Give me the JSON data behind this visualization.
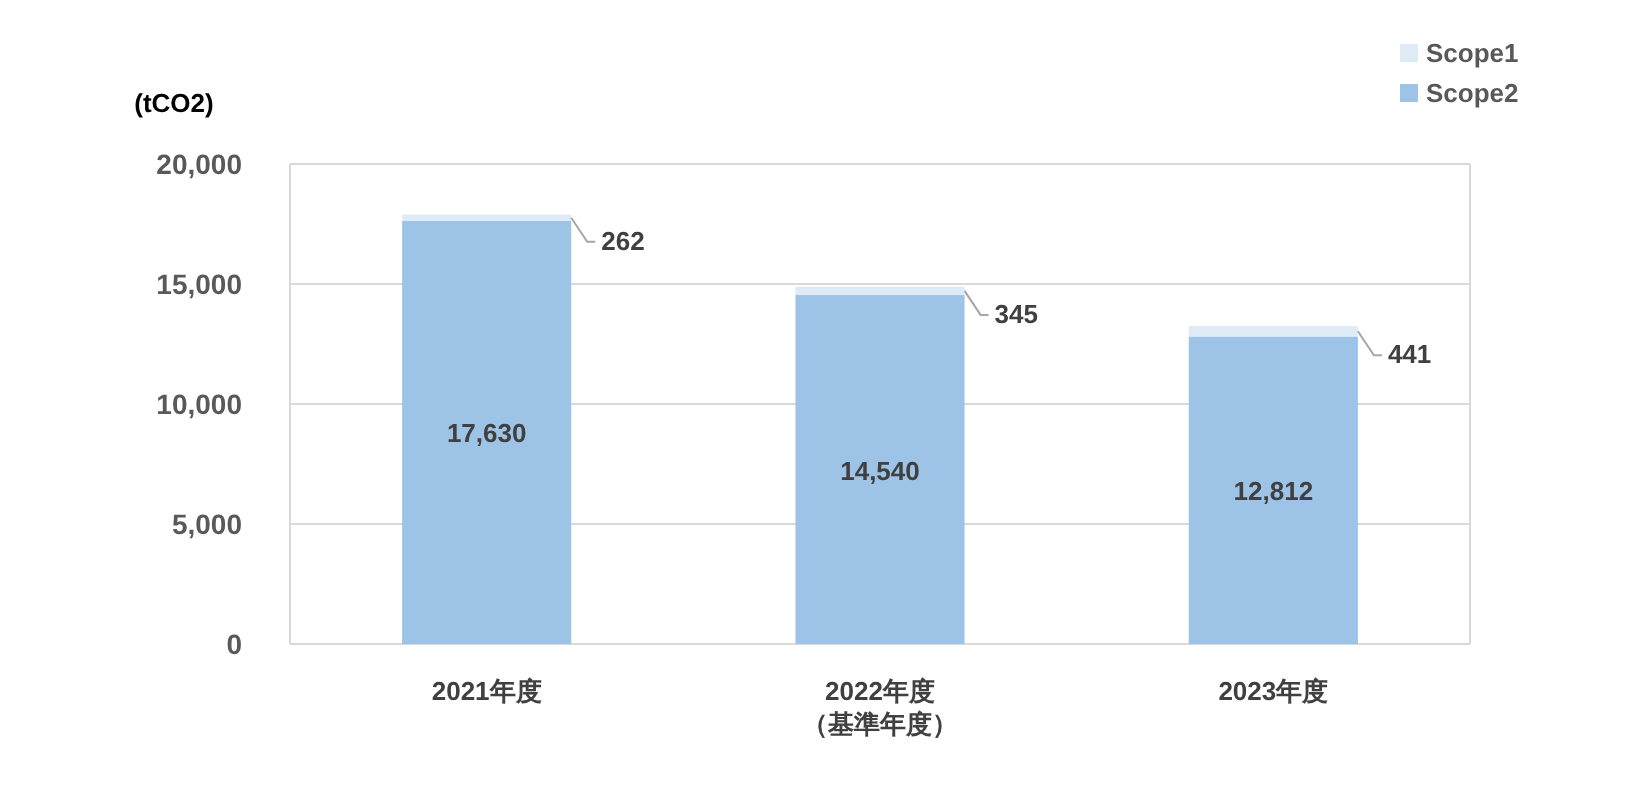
{
  "chart_data": {
    "type": "bar",
    "stacked": true,
    "ylabel": "(tCO2)",
    "categories": [
      "2021年度",
      "2022年度（基準年度）",
      "2023年度"
    ],
    "series": [
      {
        "name": "Scope2",
        "color": "#9dc3e6",
        "values": [
          17630,
          14540,
          12812
        ],
        "value_labels": [
          "17,630",
          "14,540",
          "12,812"
        ]
      },
      {
        "name": "Scope1",
        "color": "#deebf7",
        "values": [
          262,
          345,
          441
        ],
        "value_labels": [
          "262",
          "345",
          "441"
        ]
      }
    ],
    "ylim": [
      0,
      20000
    ],
    "yticks": [
      {
        "value": 0,
        "label": "0"
      },
      {
        "value": 5000,
        "label": "5,000"
      },
      {
        "value": 10000,
        "label": "10,000"
      },
      {
        "value": 15000,
        "label": "15,000"
      },
      {
        "value": 20000,
        "label": "20,000"
      }
    ],
    "grid": "y",
    "legend": "top right"
  }
}
